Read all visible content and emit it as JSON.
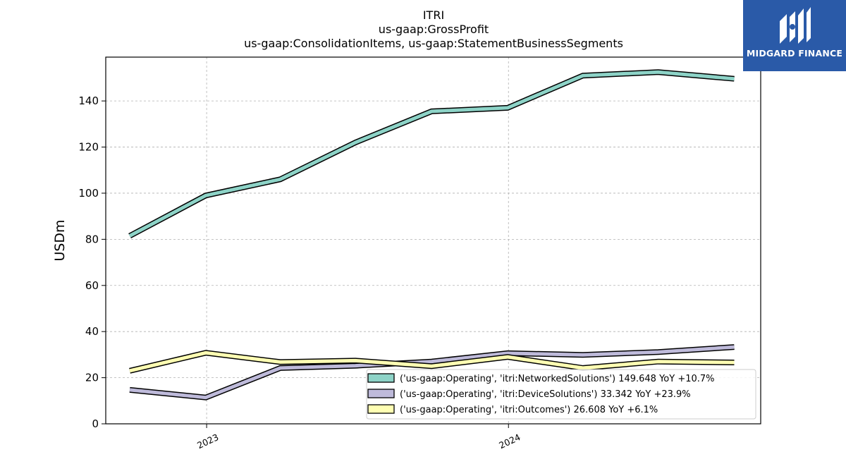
{
  "brand": {
    "name": "MIDGARD FINANCE",
    "color": "#2a5aa8",
    "icon": "midgard-logo-icon"
  },
  "chart_data": {
    "type": "line",
    "title": "ITRI",
    "subtitle_lines": [
      "us-gaap:GrossProfit",
      "us-gaap:ConsolidationItems, us-gaap:StatementBusinessSegments"
    ],
    "xlabel": "",
    "ylabel": "USDm",
    "x": [
      "2022-09-30",
      "2022-12-31",
      "2023-03-31",
      "2023-06-30",
      "2023-09-30",
      "2023-12-31",
      "2024-03-31",
      "2024-06-30",
      "2024-09-30"
    ],
    "x_ticks": [
      {
        "date": "2023-01-01",
        "label": "2023"
      },
      {
        "date": "2024-01-01",
        "label": "2024"
      }
    ],
    "xlim": [
      "2022-09-01",
      "2024-11-01"
    ],
    "ylim": [
      0,
      159
    ],
    "y_ticks": [
      0,
      20,
      40,
      60,
      80,
      100,
      120,
      140
    ],
    "grid": true,
    "legend_position": "lower-right",
    "series": [
      {
        "name": "('us-gaap:Operating', 'itri:NetworkedSolutions') 149.648 YoY +10.7%",
        "color": "#8dd3c7",
        "values": [
          81.5,
          99,
          106,
          122,
          135.5,
          137,
          151,
          152.5,
          149.6
        ]
      },
      {
        "name": "('us-gaap:Operating', 'itri:DeviceSolutions') 33.342 YoY +23.9%",
        "color": "#bebada",
        "values": [
          14.7,
          11.4,
          24.2,
          25.2,
          27,
          30.6,
          29.9,
          31.1,
          33.3
        ]
      },
      {
        "name": "('us-gaap:Operating', 'itri:Outcomes') 26.608 YoY +6.1%",
        "color": "#ffffb3",
        "values": [
          23,
          30.8,
          26.8,
          27.4,
          25,
          29,
          24.2,
          27,
          26.6
        ]
      }
    ]
  }
}
